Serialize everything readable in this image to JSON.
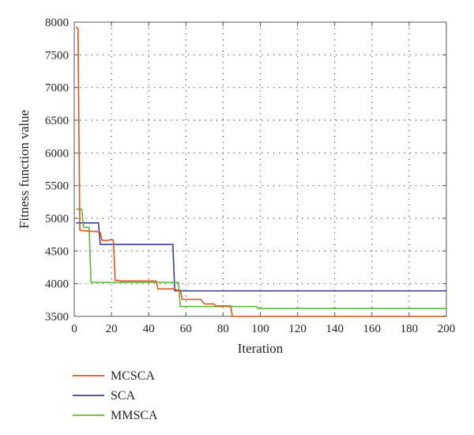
{
  "chart_data": {
    "type": "line",
    "title": "",
    "xlabel": "Iteration",
    "ylabel": "Fitness function value",
    "xlim": [
      0,
      200
    ],
    "ylim": [
      3500,
      8000
    ],
    "xticks": [
      0,
      20,
      40,
      60,
      80,
      100,
      120,
      140,
      160,
      180,
      200
    ],
    "yticks": [
      3500,
      4000,
      4500,
      5000,
      5500,
      6000,
      6500,
      7000,
      7500,
      8000
    ],
    "grid": true,
    "legend_position": "bottom-left (below plot)",
    "series": [
      {
        "name": "MCSCA",
        "color": "#e0541b",
        "points": [
          [
            1,
            7930
          ],
          [
            2,
            7900
          ],
          [
            3,
            4820
          ],
          [
            5,
            4810
          ],
          [
            10,
            4800
          ],
          [
            12,
            4800
          ],
          [
            14,
            4780
          ],
          [
            15,
            4660
          ],
          [
            18,
            4660
          ],
          [
            19,
            4670
          ],
          [
            21,
            4670
          ],
          [
            22,
            4050
          ],
          [
            24,
            4050
          ],
          [
            25,
            4040
          ],
          [
            44,
            4040
          ],
          [
            45,
            3920
          ],
          [
            54,
            3920
          ],
          [
            55,
            3900
          ],
          [
            57,
            3900
          ],
          [
            58,
            3760
          ],
          [
            68,
            3760
          ],
          [
            70,
            3690
          ],
          [
            75,
            3690
          ],
          [
            76,
            3660
          ],
          [
            84,
            3660
          ],
          [
            85,
            3500
          ],
          [
            200,
            3500
          ]
        ]
      },
      {
        "name": "SCA",
        "color": "#3a3d9e",
        "points": [
          [
            1,
            4930
          ],
          [
            13,
            4930
          ],
          [
            14,
            4600
          ],
          [
            53,
            4600
          ],
          [
            54,
            3890
          ],
          [
            200,
            3890
          ]
        ]
      },
      {
        "name": "MMSCA",
        "color": "#5cb83a",
        "points": [
          [
            1,
            5140
          ],
          [
            4,
            5140
          ],
          [
            5,
            4860
          ],
          [
            8,
            4860
          ],
          [
            9,
            4020
          ],
          [
            56,
            4020
          ],
          [
            57,
            3650
          ],
          [
            98,
            3650
          ],
          [
            99,
            3620
          ],
          [
            200,
            3620
          ]
        ]
      }
    ]
  },
  "colors": {
    "axis": "#555555",
    "grid": "#444444"
  }
}
